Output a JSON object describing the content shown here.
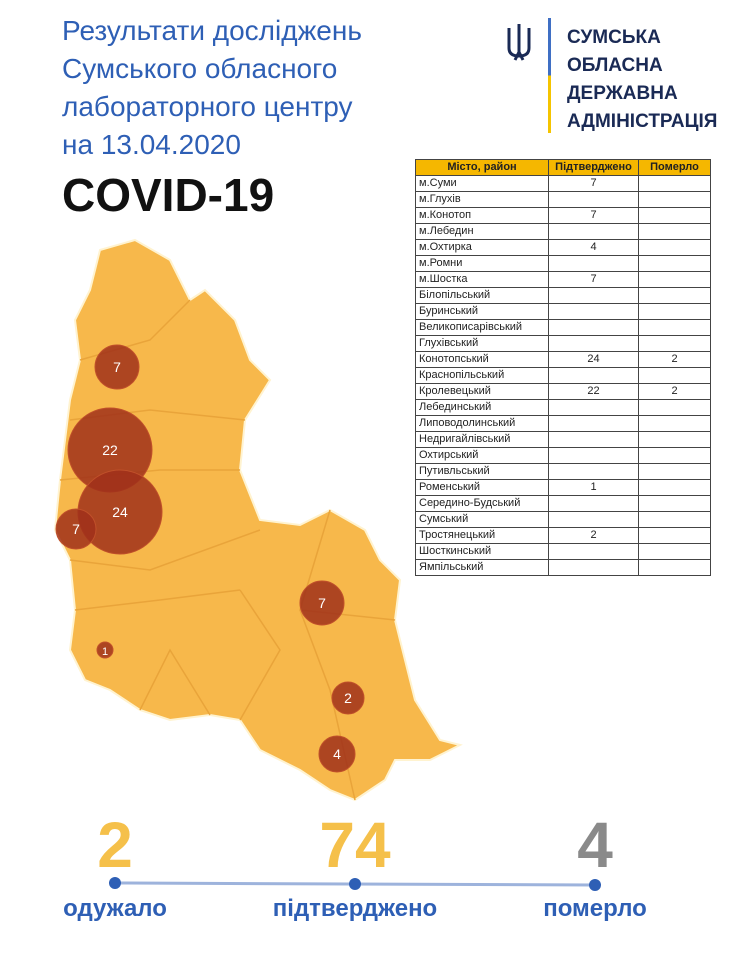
{
  "title_lines": [
    "Результати досліджень",
    "Сумського обласного",
    "лабораторного центру",
    "на 13.04.2020"
  ],
  "disease": "COVID-19",
  "org_lines": [
    "СУМСЬКА",
    "ОБЛАСНА",
    "ДЕРЖАВНА",
    "АДМІНІСТРАЦІЯ"
  ],
  "table": {
    "headers": [
      "Місто, район",
      "Підтверджено",
      "Померло"
    ],
    "rows": [
      [
        "м.Суми",
        "7",
        ""
      ],
      [
        "м.Глухів",
        "",
        ""
      ],
      [
        "м.Конотоп",
        "7",
        ""
      ],
      [
        "м.Лебедин",
        "",
        ""
      ],
      [
        "м.Охтирка",
        "4",
        ""
      ],
      [
        "м.Ромни",
        "",
        ""
      ],
      [
        "м.Шостка",
        "7",
        ""
      ],
      [
        "Білопільський",
        "",
        ""
      ],
      [
        "Буринський",
        "",
        ""
      ],
      [
        "Великописарівський",
        "",
        ""
      ],
      [
        "Глухівський",
        "",
        ""
      ],
      [
        "Конотопський",
        "24",
        "2"
      ],
      [
        "Краснопільський",
        "",
        ""
      ],
      [
        "Кролевецький",
        "22",
        "2"
      ],
      [
        "Лебединський",
        "",
        ""
      ],
      [
        "Липоводолинський",
        "",
        ""
      ],
      [
        "Недригайлівський",
        "",
        ""
      ],
      [
        "Охтирський",
        "",
        ""
      ],
      [
        "Путивльський",
        "",
        ""
      ],
      [
        "Роменський",
        "1",
        ""
      ],
      [
        "Середино-Будський",
        "",
        ""
      ],
      [
        "Сумський",
        "",
        ""
      ],
      [
        "Тростянецький",
        "2",
        ""
      ],
      [
        "Шосткинський",
        "",
        ""
      ],
      [
        "Ямпільський",
        "",
        ""
      ]
    ]
  },
  "map_markers": [
    "7",
    "22",
    "24",
    "7",
    "7",
    "1",
    "2",
    "4"
  ],
  "summary": [
    {
      "value": "2",
      "label": "одужало",
      "color": "#f5c04a"
    },
    {
      "value": "74",
      "label": "підтверджено",
      "color": "#f5c04a"
    },
    {
      "value": "4",
      "label": "померло",
      "color": "#8a8a8a"
    }
  ],
  "colors": {
    "region": "#f7b84b",
    "marker": "#a0301a",
    "accent": "#2e5fb5"
  }
}
